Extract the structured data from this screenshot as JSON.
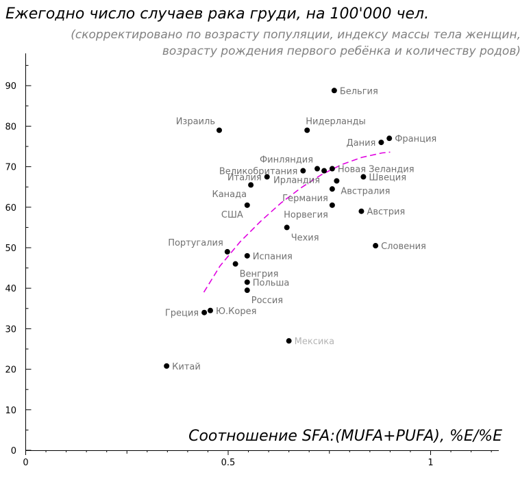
{
  "chart_data": {
    "type": "scatter",
    "title": "Ежегодно число случаев рака груди, на 100'000 чел.",
    "subtitle_lines": [
      "(скорректировано по возрасту популяции, индексу массы тела женщин,",
      "возрасту рождения первого ребёнка и количеству родов)"
    ],
    "xlabel": "Соотношение SFA:(MUFA+PUFA), %E/%E",
    "ylabel": "",
    "xlim": [
      0,
      1.17
    ],
    "ylim": [
      0,
      98
    ],
    "x_ticks": [
      0,
      0.5,
      1
    ],
    "x_tick_labels": [
      "0",
      "0.5",
      "1"
    ],
    "y_ticks": [
      0,
      10,
      20,
      30,
      40,
      50,
      60,
      70,
      80,
      90
    ],
    "y_tick_labels": [
      "0",
      "10",
      "20",
      "30",
      "40",
      "50",
      "60",
      "70",
      "80",
      "90"
    ],
    "grid": false,
    "legend": "none",
    "colors": {
      "point": "#000000",
      "label": "#707070",
      "label_outlier": "#b4b4b4",
      "trend": "#e000e0"
    },
    "points": [
      {
        "label": "Бельгия",
        "x": 0.762,
        "y": 88.8,
        "lpos": "right"
      },
      {
        "label": "Израиль",
        "x": 0.478,
        "y": 79.0,
        "lpos": "above-left"
      },
      {
        "label": "Нидерланды",
        "x": 0.695,
        "y": 79.0,
        "lpos": "above-right"
      },
      {
        "label": "Франция",
        "x": 0.898,
        "y": 77.0,
        "lpos": "right"
      },
      {
        "label": "Дания",
        "x": 0.878,
        "y": 76.0,
        "lpos": "left"
      },
      {
        "label": "Финляндия",
        "x": 0.72,
        "y": 69.5,
        "lpos": "above-left"
      },
      {
        "label": "Великобритания",
        "x": 0.685,
        "y": 69.0,
        "lpos": "left"
      },
      {
        "label": "Новая Зеландия",
        "x": 0.757,
        "y": 69.5,
        "lpos": "right"
      },
      {
        "label": "Ирландия",
        "x": 0.737,
        "y": 69.0,
        "lpos": "below-left"
      },
      {
        "label": "Италия",
        "x": 0.596,
        "y": 67.5,
        "lpos": "left"
      },
      {
        "label": "Швеция",
        "x": 0.834,
        "y": 67.5,
        "lpos": "right"
      },
      {
        "label": "Австралия",
        "x": 0.768,
        "y": 66.5,
        "lpos": "below-right"
      },
      {
        "label": "Канада",
        "x": 0.556,
        "y": 65.5,
        "lpos": "below-left"
      },
      {
        "label": "Германия",
        "x": 0.757,
        "y": 64.5,
        "lpos": "below-left"
      },
      {
        "label": "США",
        "x": 0.547,
        "y": 60.5,
        "lpos": "below-left"
      },
      {
        "label": "Норвегия",
        "x": 0.757,
        "y": 60.5,
        "lpos": "below-left"
      },
      {
        "label": "Австрия",
        "x": 0.829,
        "y": 59.0,
        "lpos": "right"
      },
      {
        "label": "Чехия",
        "x": 0.645,
        "y": 55.0,
        "lpos": "below-right"
      },
      {
        "label": "Словения",
        "x": 0.864,
        "y": 50.5,
        "lpos": "right"
      },
      {
        "label": "Португалия",
        "x": 0.498,
        "y": 49.0,
        "lpos": "above-left"
      },
      {
        "label": "Испания",
        "x": 0.547,
        "y": 48.0,
        "lpos": "right"
      },
      {
        "label": "Венгрия",
        "x": 0.518,
        "y": 46.0,
        "lpos": "below-right"
      },
      {
        "label": "Польша",
        "x": 0.547,
        "y": 41.5,
        "lpos": "right"
      },
      {
        "label": "Россия",
        "x": 0.547,
        "y": 39.5,
        "lpos": "below-right"
      },
      {
        "label": "Греция",
        "x": 0.441,
        "y": 34.0,
        "lpos": "left"
      },
      {
        "label": "Ю.Корея",
        "x": 0.456,
        "y": 34.5,
        "lpos": "right"
      },
      {
        "label": "Мексика",
        "x": 0.65,
        "y": 27.0,
        "lpos": "right",
        "outlier": true
      },
      {
        "label": "Китай",
        "x": 0.348,
        "y": 20.8,
        "lpos": "right"
      }
    ],
    "trend": [
      {
        "x": 0.44,
        "y": 39
      },
      {
        "x": 0.48,
        "y": 45.5
      },
      {
        "x": 0.53,
        "y": 51.5
      },
      {
        "x": 0.58,
        "y": 56.5
      },
      {
        "x": 0.63,
        "y": 61
      },
      {
        "x": 0.68,
        "y": 64.8
      },
      {
        "x": 0.73,
        "y": 68
      },
      {
        "x": 0.78,
        "y": 70.5
      },
      {
        "x": 0.83,
        "y": 72.3
      },
      {
        "x": 0.88,
        "y": 73.4
      },
      {
        "x": 0.9,
        "y": 73.6
      }
    ]
  }
}
